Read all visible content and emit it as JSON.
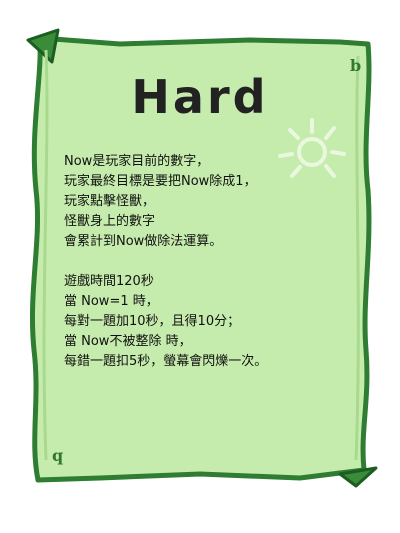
{
  "title": "Hard",
  "rules_block1": [
    "Now是玩家目前的數字，",
    "玩家最終目標是要把Now除成1，",
    "玩家點擊怪獸，",
    "怪獸身上的數字",
    "會累計到Now做除法運算。"
  ],
  "rules_block2": [
    "遊戲時間120秒",
    "當 Now=1 時，",
    "每對一題加10秒，且得10分；",
    "當 Now不被整除 時，",
    "每錯一題扣5秒，螢幕會閃爍一次。"
  ],
  "corner_marks": {
    "top_right": "b",
    "bottom_left": "q"
  },
  "colors": {
    "parchment": "#c6ecad",
    "border": "#2e7d32",
    "border_dark": "#1b5e20",
    "sun": "#e9f7df"
  },
  "icons": {
    "sun": "sun-doodle-icon"
  }
}
